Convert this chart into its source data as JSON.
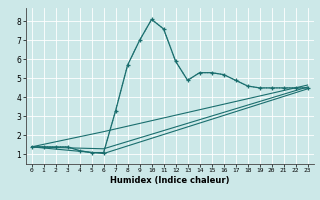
{
  "xlabel": "Humidex (Indice chaleur)",
  "xlim": [
    -0.5,
    23.5
  ],
  "ylim": [
    0.5,
    8.7
  ],
  "xticks": [
    0,
    1,
    2,
    3,
    4,
    5,
    6,
    7,
    8,
    9,
    10,
    11,
    12,
    13,
    14,
    15,
    16,
    17,
    18,
    19,
    20,
    21,
    22,
    23
  ],
  "yticks": [
    1,
    2,
    3,
    4,
    5,
    6,
    7,
    8
  ],
  "bg_color": "#cce8e8",
  "line_color": "#1a6e6e",
  "peak_x": [
    0,
    1,
    2,
    3,
    4,
    5,
    6,
    7,
    8,
    9,
    10,
    11,
    12,
    13,
    14,
    15,
    16,
    17,
    18,
    19,
    20,
    21,
    22,
    23
  ],
  "peak_y": [
    1.4,
    1.4,
    1.4,
    1.4,
    1.2,
    1.1,
    1.1,
    3.3,
    5.7,
    7.0,
    8.1,
    7.6,
    5.9,
    4.9,
    5.3,
    5.3,
    5.2,
    4.9,
    4.6,
    4.5,
    4.5,
    4.5,
    4.5,
    4.5
  ],
  "line1_x": [
    0,
    6,
    23
  ],
  "line1_y": [
    1.4,
    1.05,
    4.45
  ],
  "line2_x": [
    0,
    6,
    23
  ],
  "line2_y": [
    1.4,
    1.3,
    4.55
  ],
  "line3_x": [
    0,
    6,
    23
  ],
  "line3_y": [
    1.4,
    2.2,
    4.65
  ]
}
